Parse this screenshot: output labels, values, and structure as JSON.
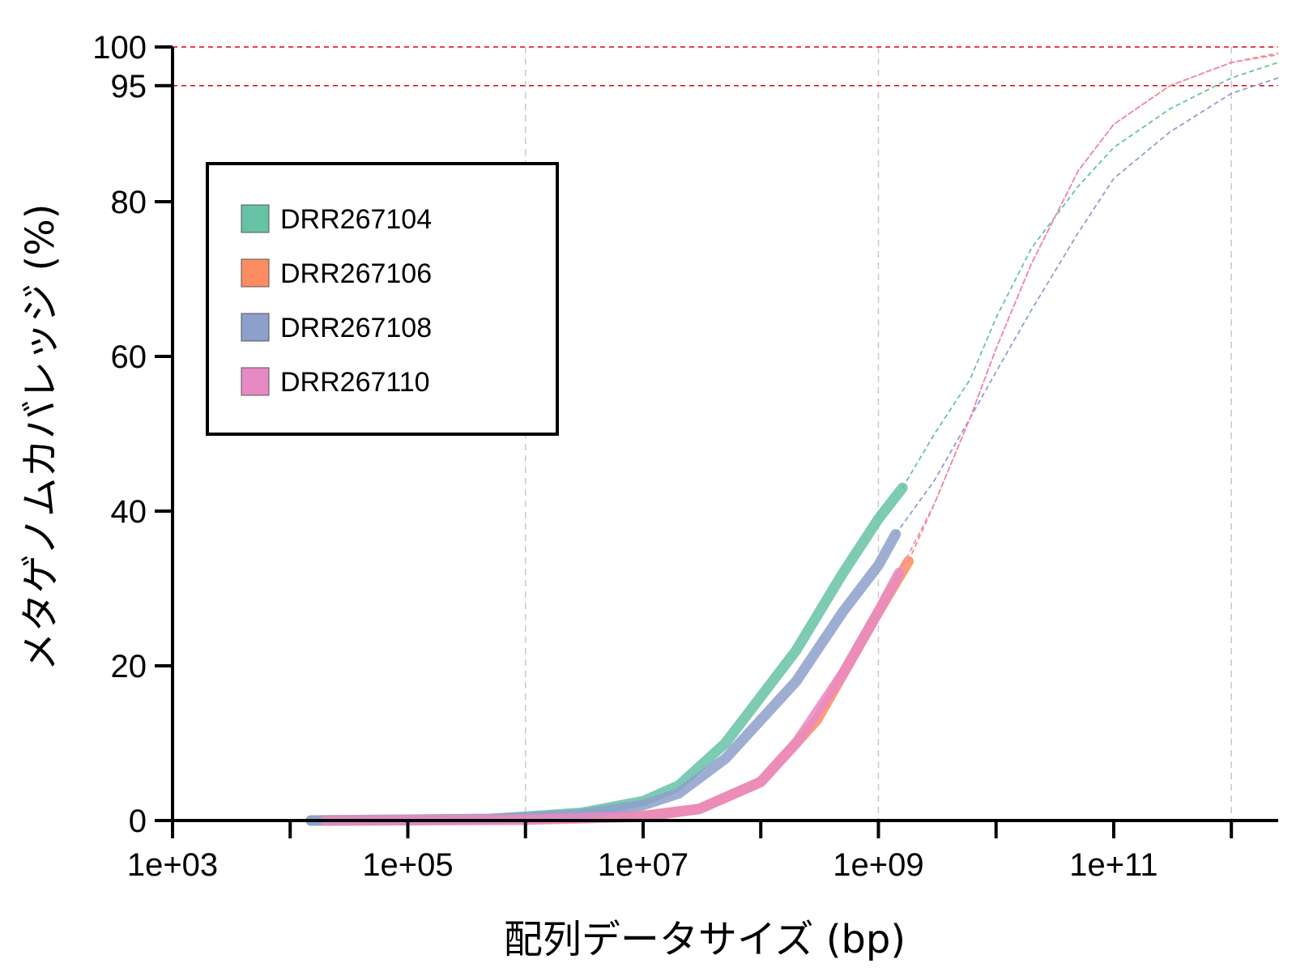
{
  "chart_data": {
    "type": "line",
    "xlabel": "配列データサイズ (bp)",
    "ylabel": "メタゲノムカバレッジ (%)",
    "x_scale": "log10",
    "xlim": [
      1000,
      2500000000000
    ],
    "ylim": [
      0,
      100
    ],
    "x_ticks": [
      1000,
      10000,
      100000,
      1000000,
      10000000,
      100000000,
      1000000000,
      10000000000,
      100000000000,
      1000000000000
    ],
    "x_tick_labels": [
      "1e+03",
      "",
      "1e+05",
      "",
      "1e+07",
      "",
      "1e+09",
      "",
      "1e+11",
      ""
    ],
    "y_ticks": [
      0,
      20,
      40,
      60,
      80,
      95,
      100
    ],
    "y_tick_labels": [
      "0",
      "20",
      "40",
      "60",
      "80",
      "95",
      "100"
    ],
    "grid": "vertical dashed at 1e+06, 1e+09, 1e+12",
    "grid_x": [
      1000000,
      1000000000,
      1000000000000
    ],
    "reference_lines": [
      {
        "y": 95,
        "color": "#e8000b",
        "style": "dashed"
      },
      {
        "y": 100,
        "color": "#e8000b",
        "style": "dashed"
      }
    ],
    "legend": {
      "position": "top-left",
      "entries": [
        "DRR267104",
        "DRR267106",
        "DRR267108",
        "DRR267110"
      ]
    },
    "series": [
      {
        "name": "DRR267104",
        "color": "#66c2a5",
        "observed": {
          "x": [
            15000,
            100000,
            500000,
            1000000,
            3000000,
            10000000,
            20000000,
            50000000,
            100000000,
            200000000,
            500000000,
            1000000000,
            1600000000
          ],
          "y": [
            0,
            0.1,
            0.2,
            0.5,
            1,
            2.5,
            4.5,
            10,
            16,
            22,
            32,
            39,
            43
          ]
        },
        "projected": {
          "x": [
            1600000000,
            3000000000,
            6000000000,
            10000000000,
            20000000000,
            50000000000,
            100000000000,
            300000000000,
            1000000000000,
            2500000000000
          ],
          "y": [
            43,
            50,
            57,
            65,
            74,
            82,
            87,
            92,
            96,
            98
          ]
        }
      },
      {
        "name": "DRR267106",
        "color": "#fc8d62",
        "observed": {
          "x": [
            20000,
            100000,
            1000000,
            10000000,
            30000000,
            100000000,
            300000000,
            1000000000,
            1800000000
          ],
          "y": [
            0,
            0.05,
            0.2,
            0.6,
            1.5,
            5,
            13,
            27,
            33.5
          ]
        },
        "projected": {
          "x": [
            1800000000,
            3000000000,
            6000000000,
            10000000000,
            20000000000,
            50000000000,
            100000000000,
            300000000000,
            1000000000000,
            2500000000000
          ],
          "y": [
            33.5,
            41,
            52,
            61,
            72,
            84,
            90,
            95,
            98,
            99.2
          ]
        }
      },
      {
        "name": "DRR267108",
        "color": "#8da0cb",
        "observed": {
          "x": [
            15000,
            100000,
            500000,
            1000000,
            3000000,
            10000000,
            20000000,
            50000000,
            100000000,
            200000000,
            500000000,
            1000000000,
            1400000000
          ],
          "y": [
            0,
            0.1,
            0.2,
            0.4,
            0.8,
            2,
            3.5,
            8,
            13,
            18,
            27,
            33,
            37
          ]
        },
        "projected": {
          "x": [
            1400000000,
            3000000000,
            6000000000,
            10000000000,
            20000000000,
            50000000000,
            100000000000,
            300000000000,
            1000000000000,
            2500000000000
          ],
          "y": [
            37,
            44,
            52,
            58,
            66,
            76,
            83,
            89,
            94,
            96
          ]
        }
      },
      {
        "name": "DRR267110",
        "color": "#e78ac3",
        "observed": {
          "x": [
            20000,
            100000,
            1000000,
            10000000,
            30000000,
            100000000,
            200000000,
            500000000,
            1000000000,
            1500000000
          ],
          "y": [
            0,
            0.05,
            0.1,
            0.5,
            1.5,
            5,
            10,
            19,
            27,
            32
          ]
        },
        "projected": {
          "x": [
            1500000000,
            3000000000,
            6000000000,
            10000000000,
            20000000000,
            50000000000,
            100000000000,
            300000000000,
            1000000000000,
            2500000000000
          ],
          "y": [
            32,
            41,
            52,
            61,
            72,
            84,
            90,
            95,
            98,
            99
          ]
        }
      }
    ]
  }
}
